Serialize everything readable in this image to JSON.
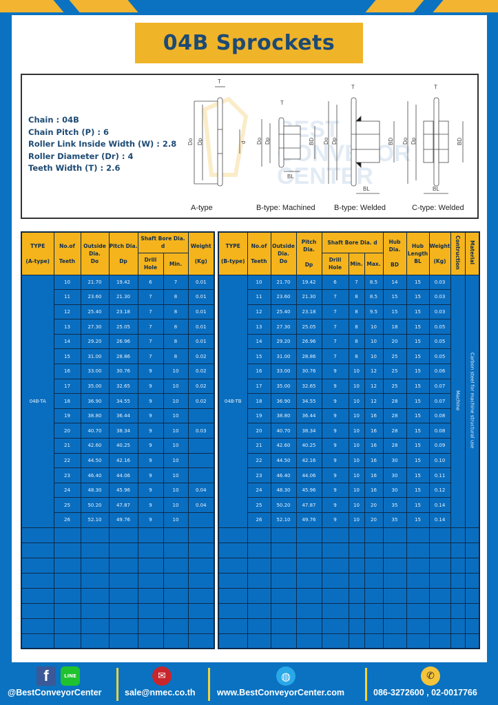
{
  "title": "04B Sprockets",
  "specs": [
    "Chain  : 04B",
    "Chain Pitch (P)  :  6",
    "Roller Link Inside Width (W)  :  2.8",
    "Roller Diameter (Dr)  : 4",
    "Teeth Width (T)  :  2.6"
  ],
  "diagram_labels": [
    "A-type",
    "B-type: Machined",
    "B-type: Welded",
    "C-type: Welded"
  ],
  "dimension_labels": {
    "T": "T",
    "Do": "Do",
    "Dp": "Dp",
    "d": "d",
    "BD": "BD",
    "BL": "BL"
  },
  "watermark": "BEST CONVEYOR CENTER",
  "tableA": {
    "headers": {
      "type": "TYPE",
      "type_sub": "(A-type)",
      "teeth": "No.of",
      "teeth_sub": "Teeth",
      "outside": "Outside",
      "outside_sub": "Dia.",
      "outside_sub2": "Do",
      "pitch": "Pitch Dia.",
      "pitch_sub": "Dp",
      "bore": "Shaft Bore Dia. d",
      "drill": "Drill Hole",
      "min": "Min.",
      "weight": "Weight",
      "weight_sub": "(Kg)"
    },
    "model": "04B-TA",
    "rows": [
      [
        "10",
        "21.70",
        "19.42",
        "6",
        "7",
        "0.01"
      ],
      [
        "11",
        "23.60",
        "21.30",
        "7",
        "8",
        "0.01"
      ],
      [
        "12",
        "25.40",
        "23.18",
        "7",
        "8",
        "0.01"
      ],
      [
        "13",
        "27.30",
        "25.05",
        "7",
        "8",
        "0.01"
      ],
      [
        "14",
        "29.20",
        "26.96",
        "7",
        "8",
        "0.01"
      ],
      [
        "15",
        "31.00",
        "28.86",
        "7",
        "8",
        "0.02"
      ],
      [
        "16",
        "33.00",
        "30.76",
        "9",
        "10",
        "0.02"
      ],
      [
        "17",
        "35.00",
        "32.65",
        "9",
        "10",
        "0.02"
      ],
      [
        "18",
        "36.90",
        "34.55",
        "9",
        "10",
        "0.02"
      ],
      [
        "19",
        "38.80",
        "36.44",
        "9",
        "10",
        ""
      ],
      [
        "20",
        "40.70",
        "38.34",
        "9",
        "10",
        "0.03"
      ],
      [
        "21",
        "42.60",
        "40.25",
        "9",
        "10",
        ""
      ],
      [
        "22",
        "44.50",
        "42.16",
        "9",
        "10",
        ""
      ],
      [
        "23",
        "46.40",
        "44.06",
        "9",
        "10",
        ""
      ],
      [
        "24",
        "48.30",
        "45.96",
        "9",
        "10",
        "0.04"
      ],
      [
        "25",
        "50.20",
        "47.87",
        "9",
        "10",
        "0.04"
      ],
      [
        "26",
        "52.10",
        "49.76",
        "9",
        "10",
        ""
      ]
    ]
  },
  "tableB": {
    "headers": {
      "type": "TYPE",
      "type_sub": "(B-type)",
      "teeth": "No.of",
      "teeth_sub": "Teeth",
      "outside": "Outside",
      "outside_sub": "Dia.",
      "outside_sub2": "Do",
      "pitch": "Pitch Dia.",
      "pitch_sub": "Dp",
      "bore": "Shaft Bore Dia. d",
      "drill": "Drill Hole",
      "min": "Min.",
      "max": "Max.",
      "hub_dia": "Hub Dia.",
      "hub_dia_sub": "BD",
      "hub_len": "Hub",
      "hub_len_sub": "Length",
      "hub_len_sub2": "BL",
      "weight": "Weight",
      "weight_sub": "(Kg)",
      "construction": "Contruction",
      "material": "Material"
    },
    "model": "04B-TB",
    "construction": "Machine",
    "material": "Carbon steel for machine structural use",
    "rows": [
      [
        "10",
        "21.70",
        "19.42",
        "6",
        "7",
        "8.5",
        "14",
        "15",
        "0.03"
      ],
      [
        "11",
        "23.60",
        "21.30",
        "7",
        "8",
        "8.5",
        "15",
        "15",
        "0.03"
      ],
      [
        "12",
        "25.40",
        "23.18",
        "7",
        "8",
        "9.5",
        "15",
        "15",
        "0.03"
      ],
      [
        "13",
        "27.30",
        "25.05",
        "7",
        "8",
        "10",
        "18",
        "15",
        "0.05"
      ],
      [
        "14",
        "29.20",
        "26.96",
        "7",
        "8",
        "10",
        "20",
        "15",
        "0.05"
      ],
      [
        "15",
        "31.00",
        "28.86",
        "7",
        "8",
        "10",
        "25",
        "15",
        "0.05"
      ],
      [
        "16",
        "33.00",
        "30.76",
        "9",
        "10",
        "12",
        "25",
        "15",
        "0.06"
      ],
      [
        "17",
        "35.00",
        "32.65",
        "9",
        "10",
        "12",
        "25",
        "15",
        "0.07"
      ],
      [
        "18",
        "36.90",
        "34.55",
        "9",
        "10",
        "12",
        "28",
        "15",
        "0.07"
      ],
      [
        "19",
        "38.80",
        "36.44",
        "9",
        "10",
        "16",
        "28",
        "15",
        "0.08"
      ],
      [
        "20",
        "40.70",
        "38.34",
        "9",
        "10",
        "16",
        "28",
        "15",
        "0.08"
      ],
      [
        "21",
        "42.60",
        "40.25",
        "9",
        "10",
        "16",
        "28",
        "15",
        "0.09"
      ],
      [
        "22",
        "44.50",
        "42.16",
        "9",
        "10",
        "16",
        "30",
        "15",
        "0.10"
      ],
      [
        "23",
        "46.40",
        "44.06",
        "9",
        "10",
        "16",
        "30",
        "15",
        "0.11"
      ],
      [
        "24",
        "48.30",
        "45.96",
        "9",
        "10",
        "16",
        "30",
        "15",
        "0.12"
      ],
      [
        "25",
        "50.20",
        "47.87",
        "9",
        "10",
        "20",
        "35",
        "15",
        "0.14"
      ],
      [
        "26",
        "52.10",
        "49.76",
        "9",
        "10",
        "20",
        "35",
        "15",
        "0.14"
      ]
    ]
  },
  "footer": {
    "social": "@BestConveyorCenter",
    "line_icon_text": "LINE",
    "email": "sale@nmec.co.th",
    "website": "www.BestConveyorCenter.com",
    "phone": "086-3272600 , 02-0017766"
  },
  "colors": {
    "brand_blue": "#0a72c0",
    "accent_yellow": "#f0b429",
    "title_text": "#1d4a73",
    "table_body": "#0a6ec0",
    "table_header": "#f5b41c"
  }
}
